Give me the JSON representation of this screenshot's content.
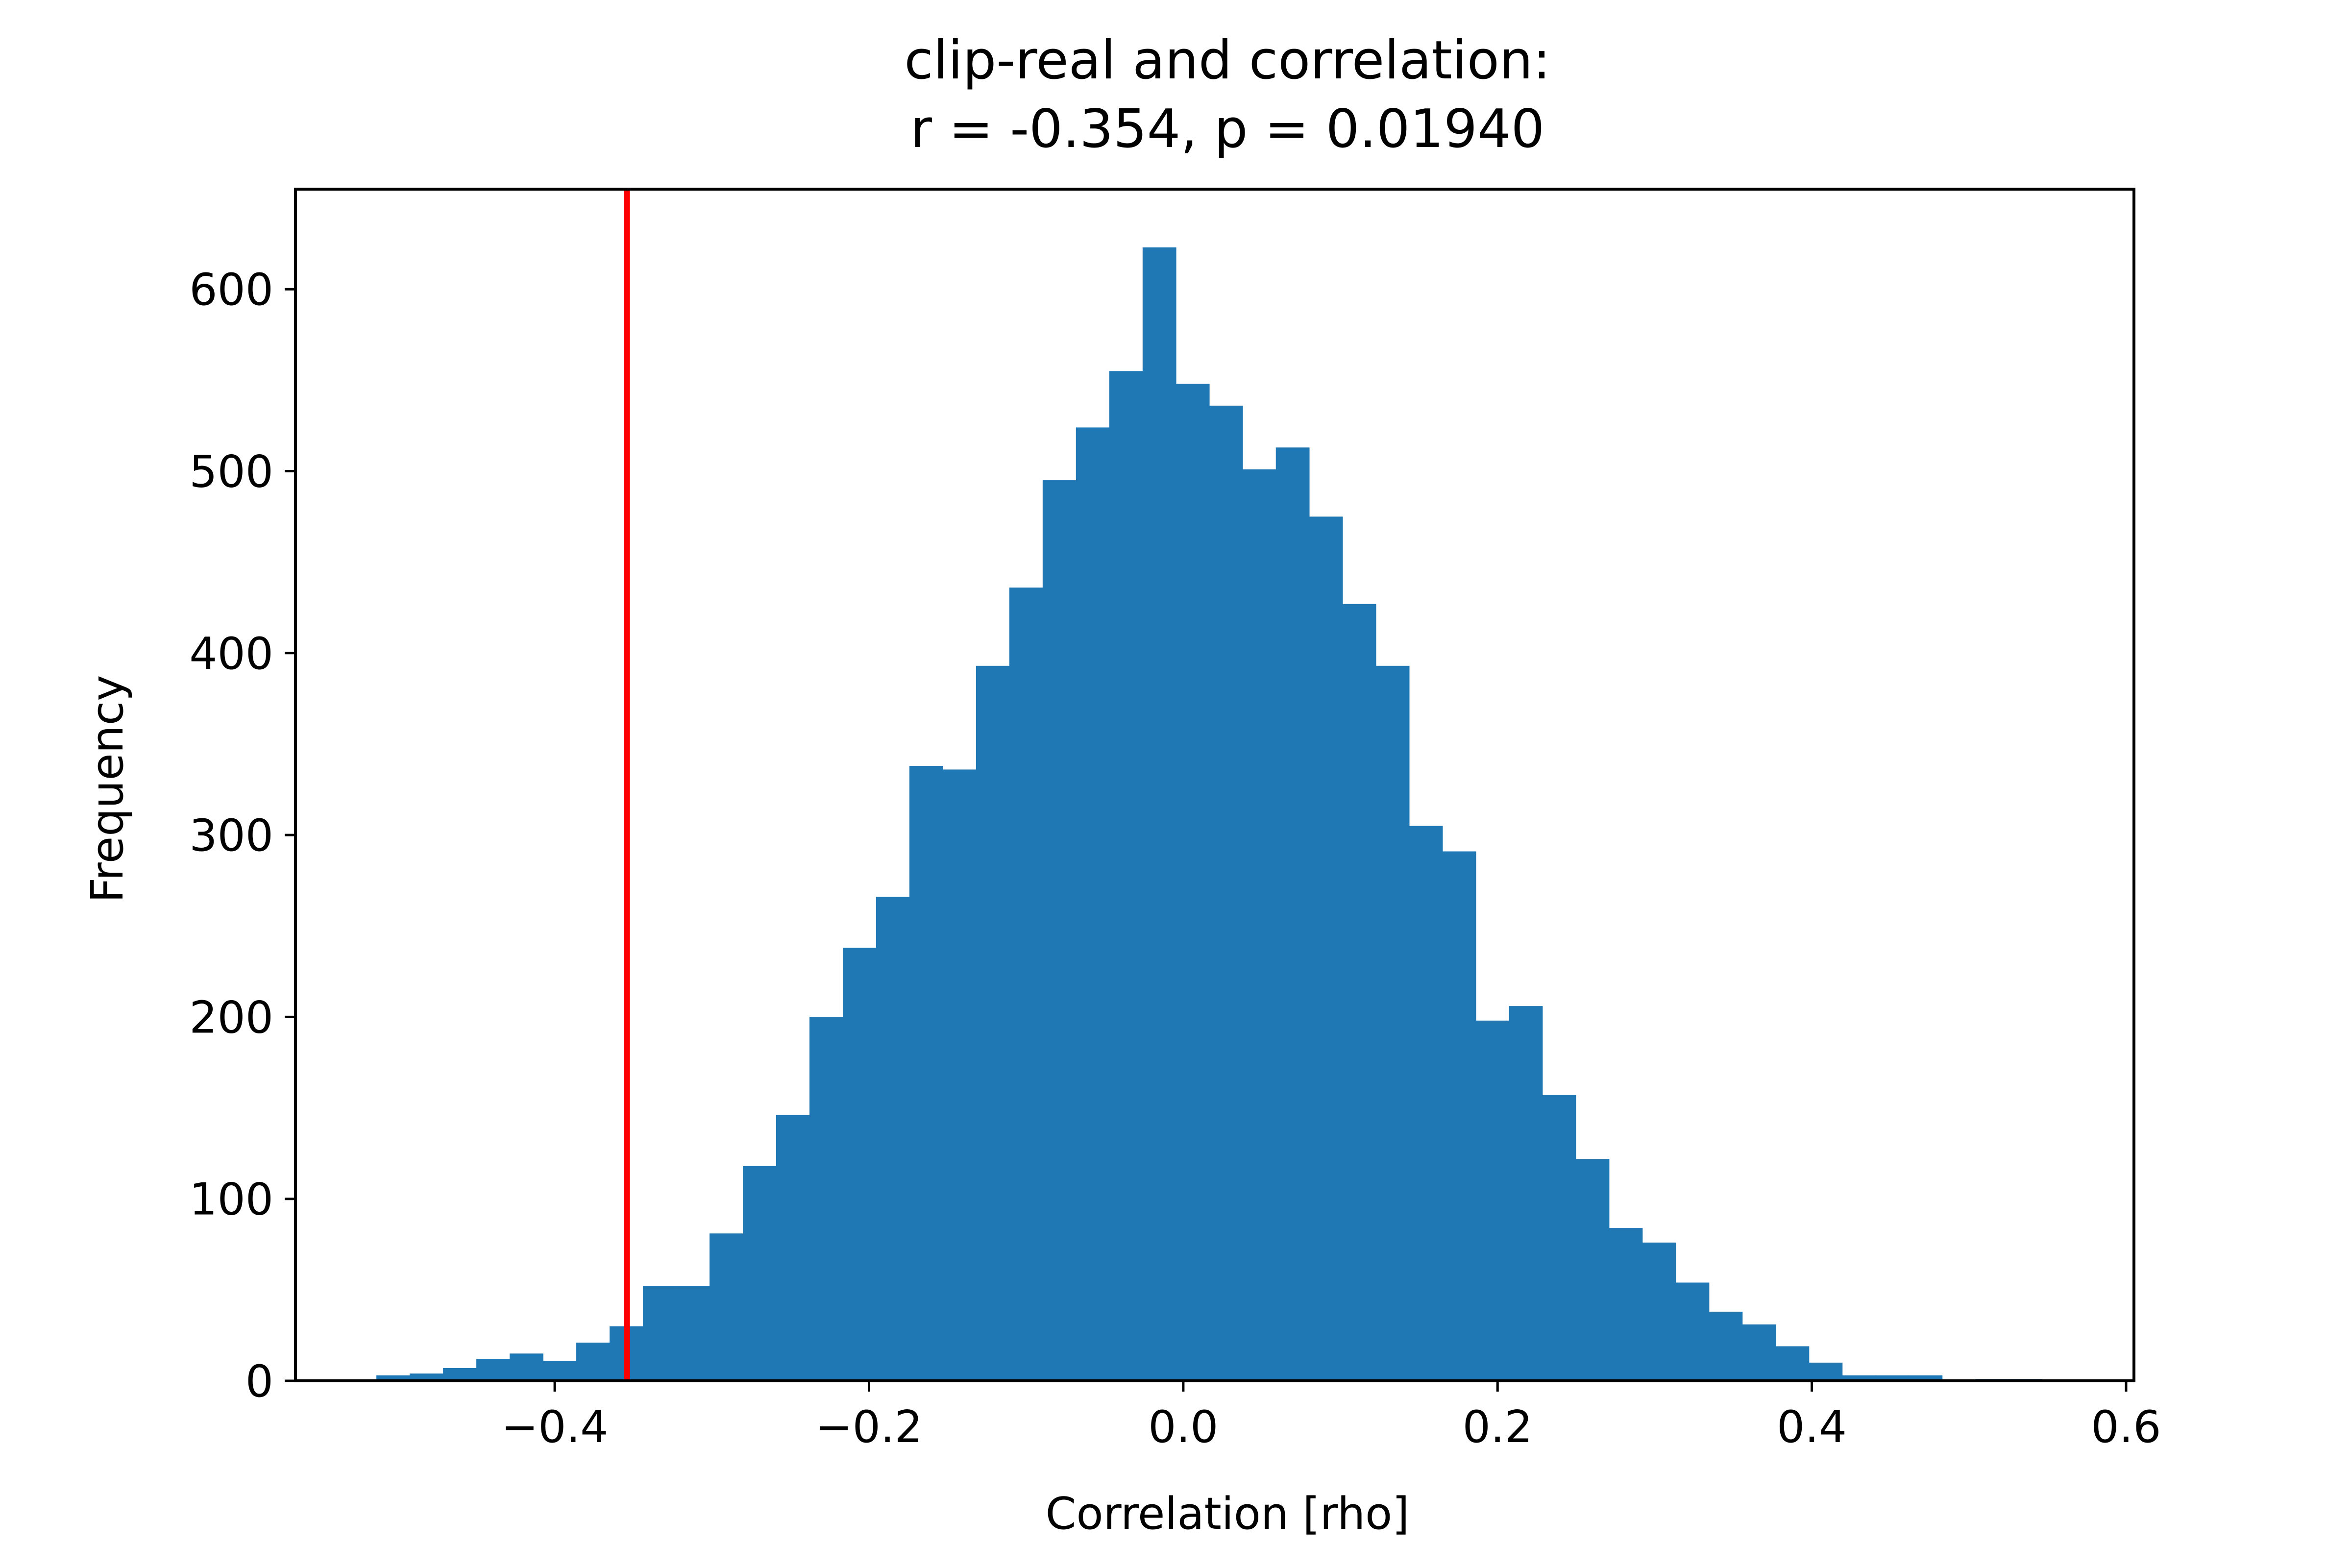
{
  "chart_data": {
    "type": "bar",
    "title": [
      "clip-real and correlation:",
      "r = -0.354, p = 0.01940"
    ],
    "xlabel": "Correlation [rho]",
    "ylabel": "Frequency",
    "xlim": [
      -0.565,
      0.605
    ],
    "ylim": [
      0,
      655
    ],
    "xticks": [
      -0.4,
      -0.2,
      0.0,
      0.2,
      0.4,
      0.6
    ],
    "xtick_labels": [
      "−0.4",
      "−0.2",
      "0.0",
      "0.2",
      "0.4",
      "0.6"
    ],
    "yticks": [
      0,
      100,
      200,
      300,
      400,
      500,
      600
    ],
    "ytick_labels": [
      "0",
      "100",
      "200",
      "300",
      "400",
      "500",
      "600"
    ],
    "grid": false,
    "bar_color": "#1f77b4",
    "bin_width": 0.0212,
    "bin_start": -0.5135,
    "values": [
      3,
      4,
      7,
      12,
      15,
      11,
      21,
      30,
      52,
      52,
      81,
      118,
      146,
      200,
      238,
      266,
      338,
      336,
      393,
      436,
      495,
      524,
      555,
      623,
      548,
      536,
      501,
      513,
      475,
      427,
      393,
      305,
      291,
      198,
      206,
      157,
      122,
      84,
      76,
      54,
      38,
      31,
      19,
      10,
      3,
      3,
      3,
      0,
      1,
      1
    ],
    "reference_line": {
      "x": -0.354,
      "color": "#ff0000"
    }
  }
}
